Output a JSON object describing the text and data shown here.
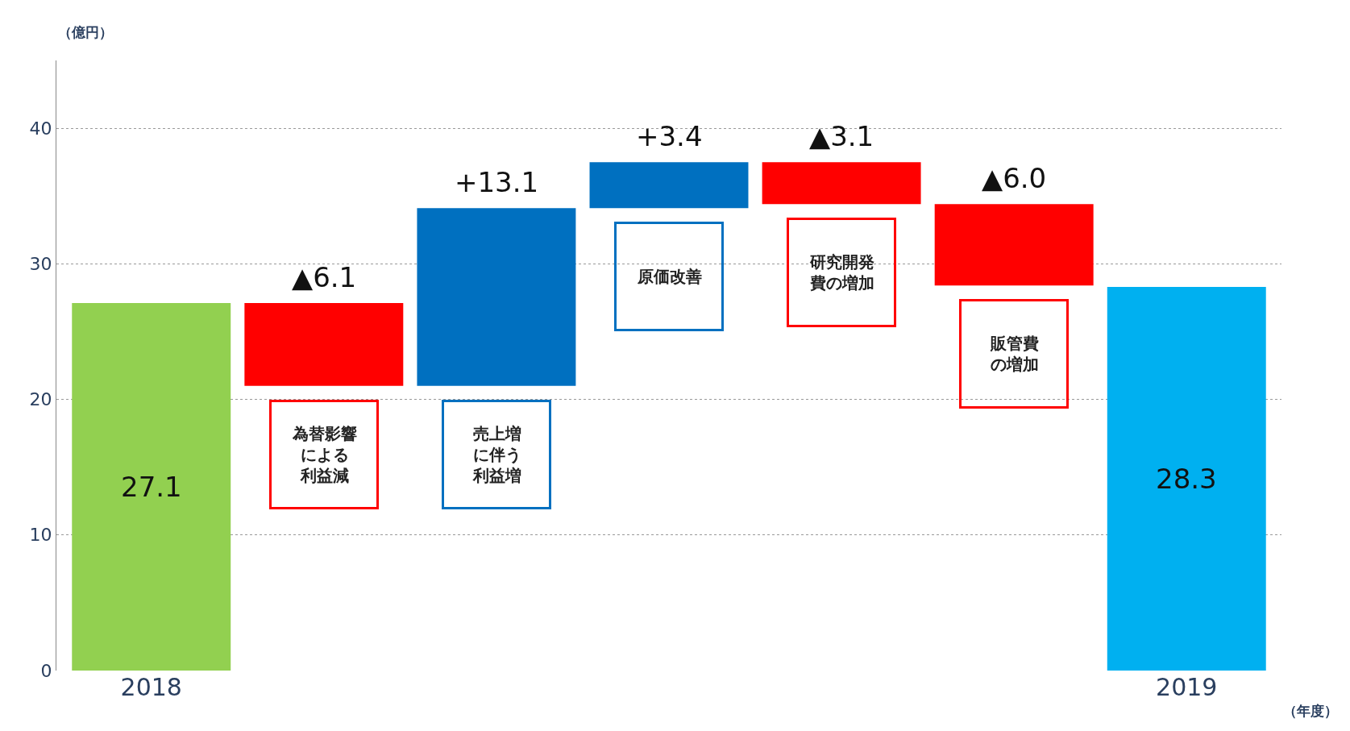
{
  "chart_data": {
    "type": "bar",
    "ylabel": "（億円）",
    "xlabel": "（年度）",
    "categories": [
      "2018",
      "為替影響による利益減",
      "売上増に伴う利益増",
      "原価改善",
      "研究開発費の増加",
      "販管費の増加",
      "2019"
    ],
    "values": [
      27.1,
      -6.1,
      13.1,
      3.4,
      -3.1,
      -6.0,
      28.3
    ],
    "base": [
      0,
      27.1,
      21.0,
      34.1,
      37.5,
      34.4,
      0
    ],
    "colors": [
      "#92d050",
      "#ff0000",
      "#0070c0",
      "#0070c0",
      "#ff0000",
      "#ff0000",
      "#00b0f0"
    ],
    "value_labels": [
      "27.1",
      "▲6.1",
      "+13.1",
      "+3.4",
      "▲3.1",
      "▲6.0",
      "28.3"
    ],
    "ylim": [
      0,
      45
    ],
    "yticks": [
      0,
      10,
      20,
      30,
      40
    ],
    "grid": "y",
    "legend": false
  }
}
